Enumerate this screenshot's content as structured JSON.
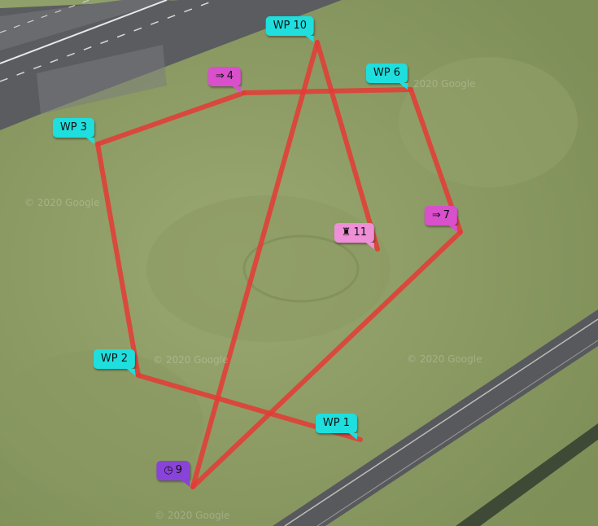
{
  "map": {
    "colors": {
      "route": "#e53935",
      "grass": "#8a9a63",
      "tarmac": "#55565a",
      "marker_cyan": "#1fdede",
      "marker_magenta": "#d94fcc",
      "marker_pink": "#ef8fd8",
      "marker_purple": "#8a43d9"
    },
    "watermarks": [
      "© 2020 Google",
      "© 2020 Google",
      "© 2020 Google",
      "© 2020 Google",
      "© 2020 Google"
    ],
    "waypoints": [
      {
        "id": "wp1",
        "label": "WP 1",
        "type": "waypoint",
        "icon": ""
      },
      {
        "id": "wp2",
        "label": "WP 2",
        "type": "waypoint",
        "icon": ""
      },
      {
        "id": "wp3",
        "label": "WP 3",
        "type": "waypoint",
        "icon": ""
      },
      {
        "id": "wp4",
        "label": "4",
        "type": "jump",
        "icon": "⇒"
      },
      {
        "id": "wp6",
        "label": "WP 6",
        "type": "waypoint",
        "icon": ""
      },
      {
        "id": "wp7",
        "label": "7",
        "type": "jump",
        "icon": "⇒"
      },
      {
        "id": "wp9",
        "label": "9",
        "type": "loiter-time",
        "icon": "◷"
      },
      {
        "id": "wp10",
        "label": "WP 10",
        "type": "waypoint",
        "icon": ""
      },
      {
        "id": "wp11",
        "label": "11",
        "type": "land",
        "icon": "♜"
      }
    ],
    "route_order": [
      "wp1",
      "wp2",
      "wp3",
      "wp4",
      "wp6",
      "wp7",
      "wp9",
      "wp10",
      "wp11"
    ]
  }
}
